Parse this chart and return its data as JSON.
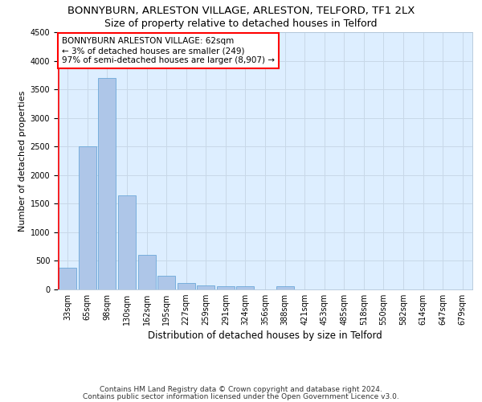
{
  "title1": "BONNYBURN, ARLESTON VILLAGE, ARLESTON, TELFORD, TF1 2LX",
  "title2": "Size of property relative to detached houses in Telford",
  "xlabel": "Distribution of detached houses by size in Telford",
  "ylabel": "Number of detached properties",
  "categories": [
    "33sqm",
    "65sqm",
    "98sqm",
    "130sqm",
    "162sqm",
    "195sqm",
    "227sqm",
    "259sqm",
    "291sqm",
    "324sqm",
    "356sqm",
    "388sqm",
    "421sqm",
    "453sqm",
    "485sqm",
    "518sqm",
    "550sqm",
    "582sqm",
    "614sqm",
    "647sqm",
    "679sqm"
  ],
  "values": [
    375,
    2500,
    3700,
    1640,
    600,
    235,
    110,
    65,
    60,
    50,
    5,
    50,
    5,
    5,
    5,
    5,
    5,
    5,
    5,
    5,
    5
  ],
  "bar_color": "#aec6e8",
  "bar_edge_color": "#5a9fd4",
  "vline_color": "red",
  "annotation_text": "BONNYBURN ARLESTON VILLAGE: 62sqm\n← 3% of detached houses are smaller (249)\n97% of semi-detached houses are larger (8,907) →",
  "annotation_box_color": "white",
  "annotation_box_edge_color": "red",
  "ylim": [
    0,
    4500
  ],
  "grid_color": "#c8d8e8",
  "background_color": "#ddeeff",
  "footer1": "Contains HM Land Registry data © Crown copyright and database right 2024.",
  "footer2": "Contains public sector information licensed under the Open Government Licence v3.0.",
  "title1_fontsize": 9.5,
  "title2_fontsize": 9,
  "xlabel_fontsize": 8.5,
  "ylabel_fontsize": 8,
  "tick_fontsize": 7,
  "annotation_fontsize": 7.5,
  "footer_fontsize": 6.5
}
